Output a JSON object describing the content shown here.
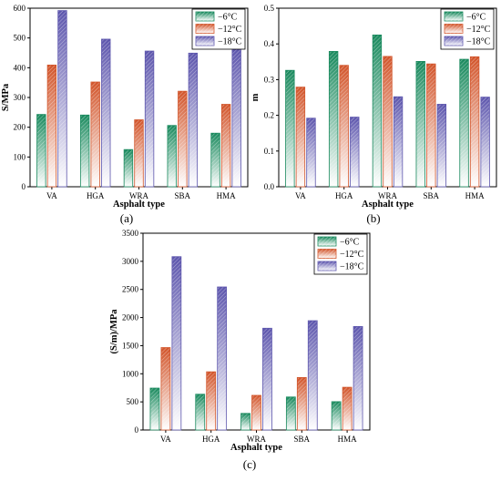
{
  "legend_labels": [
    "−6°C",
    "−12°C",
    "−18°C"
  ],
  "colors": {
    "minus6": "#1a8a5e",
    "minus12": "#d2552b",
    "minus18": "#5d56ad"
  },
  "chart_data": [
    {
      "type": "bar",
      "panel_label": "(a)",
      "xlabel": "Asphalt type",
      "ylabel": "S/MPa",
      "categories": [
        "VA",
        "HGA",
        "WRA",
        "SBA",
        "HMA"
      ],
      "ylim": [
        0,
        600
      ],
      "yticks": [
        0,
        100,
        200,
        300,
        400,
        500,
        600
      ],
      "ytick_labels": [
        "0",
        "100",
        "200",
        "300",
        "400",
        "500",
        "600"
      ],
      "series": [
        {
          "name": "−6°C",
          "values": [
            243,
            241,
            125,
            206,
            180
          ]
        },
        {
          "name": "−12°C",
          "values": [
            409,
            352,
            225,
            321,
            277
          ]
        },
        {
          "name": "−18°C",
          "values": [
            592,
            496,
            456,
            449,
            462
          ]
        }
      ],
      "legend_position": "top-right"
    },
    {
      "type": "bar",
      "panel_label": "(b)",
      "xlabel": "Asphalt type",
      "ylabel": "m",
      "categories": [
        "VA",
        "HGA",
        "WRA",
        "SBA",
        "HMA"
      ],
      "ylim": [
        0,
        0.5
      ],
      "yticks": [
        0,
        0.1,
        0.2,
        0.3,
        0.4,
        0.5
      ],
      "ytick_labels": [
        "0.0",
        "0.1",
        "0.2",
        "0.3",
        "0.4",
        "0.5"
      ],
      "series": [
        {
          "name": "−6°C",
          "values": [
            0.326,
            0.379,
            0.425,
            0.351,
            0.357
          ]
        },
        {
          "name": "−12°C",
          "values": [
            0.279,
            0.34,
            0.365,
            0.344,
            0.364
          ]
        },
        {
          "name": "−18°C",
          "values": [
            0.192,
            0.195,
            0.252,
            0.231,
            0.251
          ]
        }
      ],
      "legend_position": "top-right"
    },
    {
      "type": "bar",
      "panel_label": "(c)",
      "xlabel": "Asphalt type",
      "ylabel": "(S/m)/MPa",
      "categories": [
        "VA",
        "HGA",
        "WRA",
        "SBA",
        "HMA"
      ],
      "ylim": [
        0,
        3500
      ],
      "yticks": [
        0,
        500,
        1000,
        1500,
        2000,
        2500,
        3000,
        3500
      ],
      "ytick_labels": [
        "0",
        "500",
        "1000",
        "1500",
        "2000",
        "2500",
        "3000",
        "3500"
      ],
      "series": [
        {
          "name": "−6°C",
          "values": [
            745,
            636,
            295,
            587,
            504
          ]
        },
        {
          "name": "−12°C",
          "values": [
            1466,
            1035,
            616,
            933,
            760
          ]
        },
        {
          "name": "−18°C",
          "values": [
            3083,
            2544,
            1810,
            1944,
            1841
          ]
        }
      ],
      "legend_position": "top-right"
    }
  ]
}
